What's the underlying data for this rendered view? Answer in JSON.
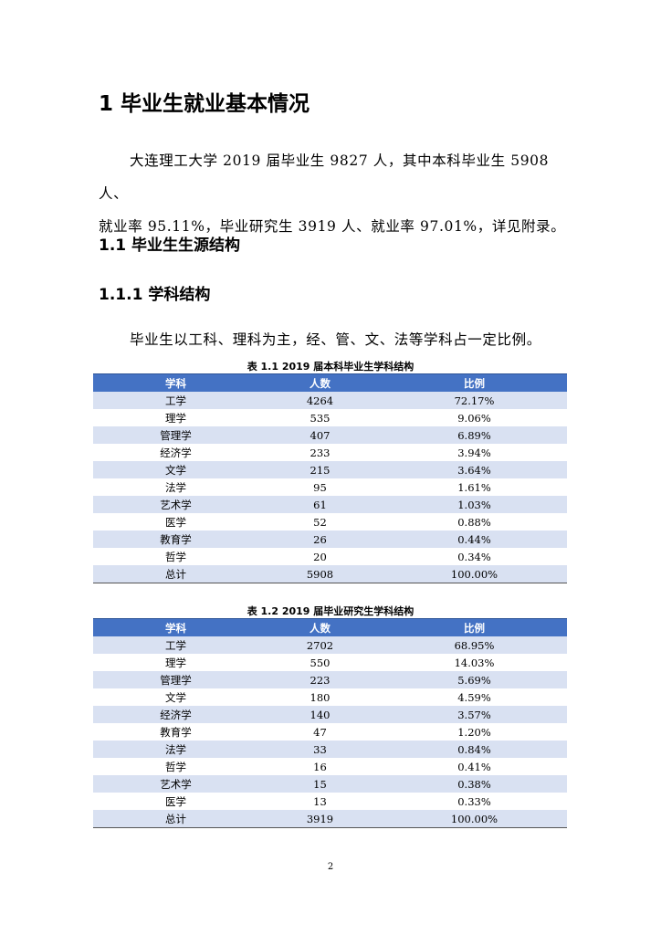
{
  "heading1": "1  毕业生就业基本情况",
  "para1_line1": "大连理工大学 2019 届毕业生 9827 人，其中本科毕业生 5908 人、",
  "para1_line2": "就业率 95.11%，毕业研究生 3919 人、就业率 97.01%，详见附录。",
  "heading2": "1.1  毕业生生源结构",
  "heading3": "1.1.1  学科结构",
  "para2": "毕业生以工科、理科为主，经、管、文、法等学科占一定比例。",
  "colors": {
    "header": "#4472c4",
    "band": "#d9e1f2"
  },
  "tables": [
    {
      "caption": "表 1.1    2019 届本科毕业生学科结构",
      "headers": [
        "学科",
        "人数",
        "比例"
      ],
      "rows": [
        [
          "工学",
          "4264",
          "72.17%"
        ],
        [
          "理学",
          "535",
          "9.06%"
        ],
        [
          "管理学",
          "407",
          "6.89%"
        ],
        [
          "经济学",
          "233",
          "3.94%"
        ],
        [
          "文学",
          "215",
          "3.64%"
        ],
        [
          "法学",
          "95",
          "1.61%"
        ],
        [
          "艺术学",
          "61",
          "1.03%"
        ],
        [
          "医学",
          "52",
          "0.88%"
        ],
        [
          "教育学",
          "26",
          "0.44%"
        ],
        [
          "哲学",
          "20",
          "0.34%"
        ],
        [
          "总计",
          "5908",
          "100.00%"
        ]
      ]
    },
    {
      "caption": "表 1.2    2019 届毕业研究生学科结构",
      "headers": [
        "学科",
        "人数",
        "比例"
      ],
      "rows": [
        [
          "工学",
          "2702",
          "68.95%"
        ],
        [
          "理学",
          "550",
          "14.03%"
        ],
        [
          "管理学",
          "223",
          "5.69%"
        ],
        [
          "文学",
          "180",
          "4.59%"
        ],
        [
          "经济学",
          "140",
          "3.57%"
        ],
        [
          "教育学",
          "47",
          "1.20%"
        ],
        [
          "法学",
          "33",
          "0.84%"
        ],
        [
          "哲学",
          "16",
          "0.41%"
        ],
        [
          "艺术学",
          "15",
          "0.38%"
        ],
        [
          "医学",
          "13",
          "0.33%"
        ],
        [
          "总计",
          "3919",
          "100.00%"
        ]
      ]
    }
  ],
  "page_number": "2"
}
